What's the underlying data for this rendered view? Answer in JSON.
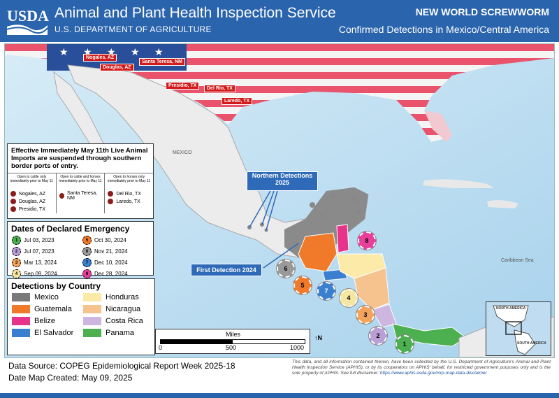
{
  "header": {
    "logo_text": "USDA",
    "agency": "Animal and Plant Health Inspection Service",
    "department": "U.S. DEPARTMENT OF AGRICULTURE",
    "title": "NEW WORLD SCREWWORM",
    "subtitle": "Confirmed Detections in Mexico/Central America"
  },
  "map": {
    "border_ports": [
      "Nogales, AZ",
      "Douglas, AZ",
      "Santa Teresa, NM",
      "Presidio, TX",
      "Del Rio, TX",
      "Laredo, TX"
    ],
    "place_labels": {
      "mexico": "MEXICO",
      "caribbean": "Caribbean Sea"
    },
    "callouts": {
      "northern": "Northern Detections 2025",
      "first": "First Detection 2024"
    },
    "emergency_markers": [
      "1",
      "2",
      "3",
      "4",
      "5",
      "6",
      "7",
      "8"
    ],
    "inset_labels": {
      "north": "NORTH AMERICA",
      "south": "SOUTH AMERICA"
    }
  },
  "notice": {
    "title": "Effective Immediately May 11th Live Animal Imports are suspended through southern border ports of entry.",
    "columns": [
      {
        "header": "Open to cattle only immediately prior to May 11",
        "ports": [
          "Nogales, AZ",
          "Douglas, AZ",
          "Presidio, TX"
        ]
      },
      {
        "header": "Open to cattle and horses immediately prior to May 11",
        "ports": [
          "Santa Teresa, NM"
        ]
      },
      {
        "header": "Open to horses only immediately prior to May 11",
        "ports": [
          "Del Rio, TX",
          "Laredo, TX"
        ]
      }
    ]
  },
  "emergency_dates": {
    "title": "Dates of Declared Emergency",
    "items": [
      {
        "num": "1",
        "date": "Jul 03, 2023",
        "color": "#4caf50"
      },
      {
        "num": "5",
        "date": "Oct 30, 2024",
        "color": "#f07a2a"
      },
      {
        "num": "2",
        "date": "Jul 07, 2023",
        "color": "#b89fd4"
      },
      {
        "num": "6",
        "date": "Nov 21, 2024",
        "color": "#999999"
      },
      {
        "num": "3",
        "date": "Mar 13, 2024",
        "color": "#f2a35c"
      },
      {
        "num": "7",
        "date": "Dec 10, 2024",
        "color": "#3a7fd0"
      },
      {
        "num": "4",
        "date": "Sep 09, 2024",
        "color": "#f5e6a3"
      },
      {
        "num": "8",
        "date": "Dec 28, 2024",
        "color": "#e83f9a"
      }
    ]
  },
  "detections": {
    "title": "Detections by Country",
    "items": [
      {
        "name": "Mexico",
        "color": "#7a7a7a"
      },
      {
        "name": "Honduras",
        "color": "#fbeaa8"
      },
      {
        "name": "Guatemala",
        "color": "#f07a2a"
      },
      {
        "name": "Nicaragua",
        "color": "#f6c28e"
      },
      {
        "name": "Belize",
        "color": "#e8338a"
      },
      {
        "name": "Costa Rica",
        "color": "#cdb6e0"
      },
      {
        "name": "El Salvador",
        "color": "#3a7fd0"
      },
      {
        "name": "Panama",
        "color": "#4caf50"
      }
    ]
  },
  "scale": {
    "unit": "Miles",
    "ticks": [
      "0",
      "500",
      "1000"
    ],
    "north": "N"
  },
  "footer": {
    "source": "Data Source: COPEG Epidemiological Report Week 2025-18",
    "created": "Date Map Created: May 09, 2025",
    "disclaimer": "This data, and all information contained therein, have been collected by the U.S. Department of Agriculture's Animal and Plant Health Inspection Service (APHIS), or by its cooperators on APHIS' behalf, for restricted government purposes only and is the sole property of APHIS. See full disclaimer:",
    "disclaimer_link": "https://www.aphis.usda.gov/mrp-map-data-disclaimer"
  }
}
